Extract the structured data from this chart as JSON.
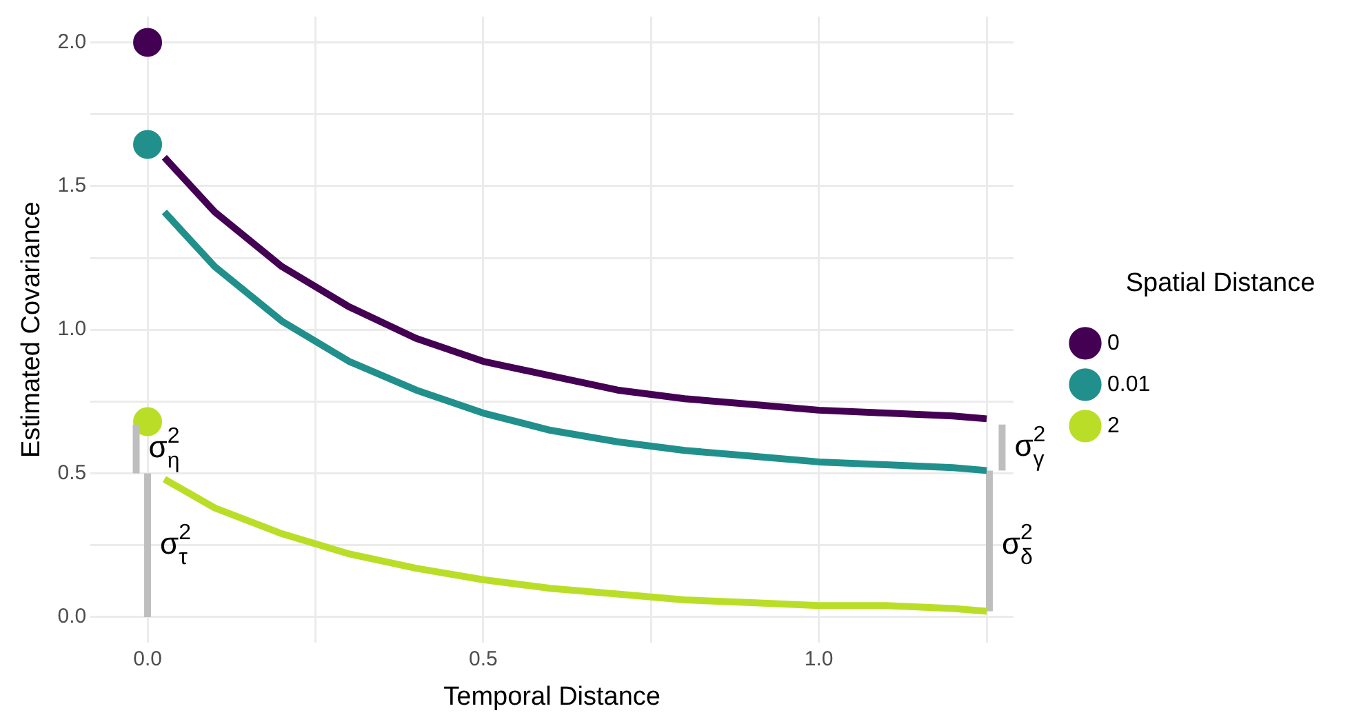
{
  "chart_data": {
    "type": "line",
    "xlabel": "Temporal Distance",
    "ylabel": "Estimated Covariance",
    "legend_title": "Spatial Distance",
    "legend": "right",
    "grid": true,
    "line_style": "solid",
    "xlim": [
      -0.085,
      1.29
    ],
    "ylim": [
      -0.09,
      2.09
    ],
    "xticks": [
      {
        "value": 0,
        "label": "0.0"
      },
      {
        "value": 0.25,
        "label": null
      },
      {
        "value": 0.5,
        "label": "0.5"
      },
      {
        "value": 0.75,
        "label": null
      },
      {
        "value": 1,
        "label": "1.0"
      },
      {
        "value": 1.25,
        "label": null
      }
    ],
    "yticks": [
      {
        "value": 0,
        "label": "0.0"
      },
      {
        "value": 0.25,
        "label": null
      },
      {
        "value": 0.5,
        "label": "0.5"
      },
      {
        "value": 0.75,
        "label": null
      },
      {
        "value": 1,
        "label": "1.0"
      },
      {
        "value": 1.25,
        "label": null
      },
      {
        "value": 1.5,
        "label": "1.5"
      },
      {
        "value": 1.75,
        "label": null
      },
      {
        "value": 2,
        "label": "2.0"
      }
    ],
    "series": [
      {
        "color": "#440154",
        "x": [
          0.025,
          0.1,
          0.2,
          0.3,
          0.4,
          0.5,
          0.6,
          0.7,
          0.8,
          0.9,
          1.0,
          1.1,
          1.2,
          1.25
        ],
        "values": [
          1.6,
          1.41,
          1.22,
          1.08,
          0.97,
          0.89,
          0.84,
          0.79,
          0.76,
          0.74,
          0.72,
          0.71,
          0.7,
          0.69
        ]
      },
      {
        "color": "#21908c",
        "x": [
          0.025,
          0.1,
          0.2,
          0.3,
          0.4,
          0.5,
          0.6,
          0.7,
          0.8,
          0.9,
          1.0,
          1.1,
          1.2,
          1.25
        ],
        "values": [
          1.41,
          1.22,
          1.03,
          0.89,
          0.79,
          0.71,
          0.65,
          0.61,
          0.58,
          0.56,
          0.54,
          0.53,
          0.52,
          0.51
        ]
      },
      {
        "color": "#bade28",
        "x": [
          0.025,
          0.1,
          0.2,
          0.3,
          0.4,
          0.5,
          0.6,
          0.7,
          0.8,
          0.9,
          1.0,
          1.1,
          1.2,
          1.25
        ],
        "values": [
          0.48,
          0.38,
          0.29,
          0.22,
          0.17,
          0.13,
          0.1,
          0.08,
          0.06,
          0.05,
          0.04,
          0.04,
          0.03,
          0.02
        ]
      },
      {
        "color": "#bebebe",
        "x": [
          -0.017,
          -0.017
        ],
        "values": [
          0.5,
          0.67
        ]
      },
      {
        "color": "#bebebe",
        "x": [
          0,
          0
        ],
        "values": [
          0,
          0.5
        ]
      },
      {
        "color": "#bebebe",
        "x": [
          1.273,
          1.273
        ],
        "values": [
          0.51,
          0.67
        ]
      },
      {
        "color": "#bebebe",
        "x": [
          1.254,
          1.254
        ],
        "values": [
          0.02,
          0.51
        ]
      },
      {
        "type": "scatter",
        "name": "0",
        "color": "#440154",
        "x": [
          0
        ],
        "values": [
          2.0
        ]
      },
      {
        "type": "scatter",
        "name": "0.01",
        "color": "#21908c",
        "x": [
          0
        ],
        "values": [
          1.645
        ]
      },
      {
        "type": "scatter",
        "name": "2",
        "color": "#bade28",
        "x": [
          0
        ],
        "values": [
          0.68
        ]
      }
    ],
    "annotations": [
      {
        "text": "σ$^{2}$$_{η}$",
        "x": -0.017,
        "y": 0.585
      },
      {
        "text": "σ$^{2}$$_{τ}$",
        "x": 0,
        "y": 0.25
      },
      {
        "text": "σ$^{2}$$_{γ}$",
        "x": 1.273,
        "y": 0.59
      },
      {
        "text": "σ$^{2}$$_{δ}$",
        "x": 1.254,
        "y": 0.25
      }
    ]
  }
}
